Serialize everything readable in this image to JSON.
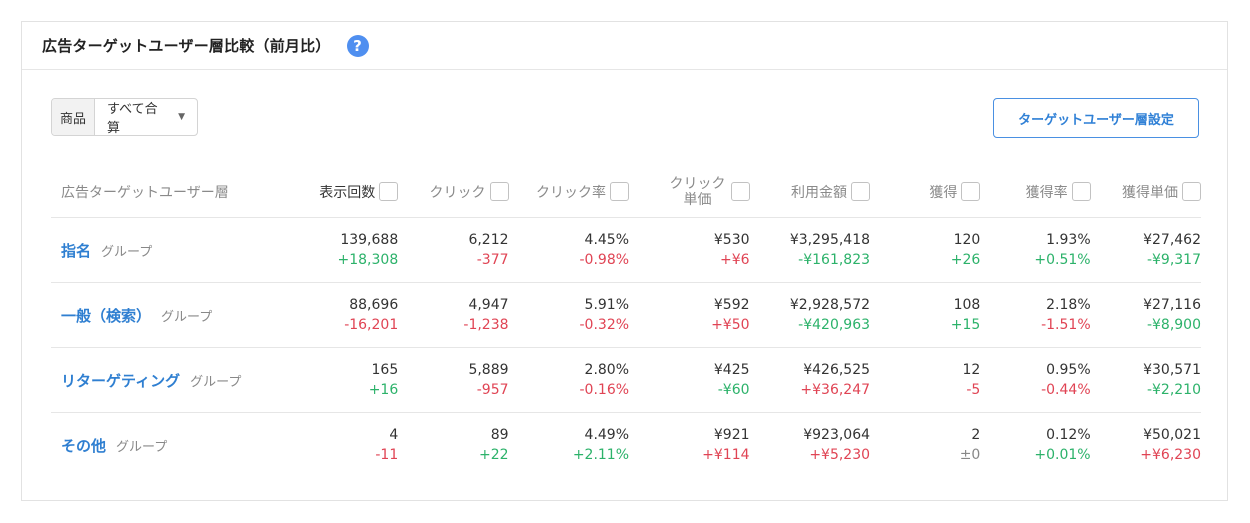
{
  "panel": {
    "title": "広告ターゲットユーザー層比較（前月比）",
    "help_icon": "?"
  },
  "filter": {
    "label": "商品",
    "selected": "すべて合算",
    "caret": "▼"
  },
  "target_button_label": "ターゲットユーザー層設定",
  "columns": [
    "広告ターゲットユーザー層",
    "表示回数",
    "クリック",
    "クリック率",
    "クリック単価",
    "利用金額",
    "獲得",
    "獲得率",
    "獲得単価"
  ],
  "rows": [
    {
      "name": "指名",
      "sub": "グループ",
      "cells": [
        {
          "value": "139,688",
          "diff": "+18,308",
          "trend": "pos"
        },
        {
          "value": "6,212",
          "diff": "-377",
          "trend": "neg"
        },
        {
          "value": "4.45%",
          "diff": "-0.98%",
          "trend": "neg"
        },
        {
          "value": "¥530",
          "diff": "+¥6",
          "trend": "neg"
        },
        {
          "value": "¥3,295,418",
          "diff": "-¥161,823",
          "trend": "pos"
        },
        {
          "value": "120",
          "diff": "+26",
          "trend": "pos"
        },
        {
          "value": "1.93%",
          "diff": "+0.51%",
          "trend": "pos"
        },
        {
          "value": "¥27,462",
          "diff": "-¥9,317",
          "trend": "pos"
        }
      ]
    },
    {
      "name": "一般（検索）",
      "sub": "グループ",
      "cells": [
        {
          "value": "88,696",
          "diff": "-16,201",
          "trend": "neg"
        },
        {
          "value": "4,947",
          "diff": "-1,238",
          "trend": "neg"
        },
        {
          "value": "5.91%",
          "diff": "-0.32%",
          "trend": "neg"
        },
        {
          "value": "¥592",
          "diff": "+¥50",
          "trend": "neg"
        },
        {
          "value": "¥2,928,572",
          "diff": "-¥420,963",
          "trend": "pos"
        },
        {
          "value": "108",
          "diff": "+15",
          "trend": "pos"
        },
        {
          "value": "2.18%",
          "diff": "-1.51%",
          "trend": "neg"
        },
        {
          "value": "¥27,116",
          "diff": "-¥8,900",
          "trend": "pos"
        }
      ]
    },
    {
      "name": "リターゲティング",
      "sub": "グループ",
      "cells": [
        {
          "value": "165",
          "diff": "+16",
          "trend": "pos"
        },
        {
          "value": "5,889",
          "diff": "-957",
          "trend": "neg"
        },
        {
          "value": "2.80%",
          "diff": "-0.16%",
          "trend": "neg"
        },
        {
          "value": "¥425",
          "diff": "-¥60",
          "trend": "pos"
        },
        {
          "value": "¥426,525",
          "diff": "+¥36,247",
          "trend": "neg"
        },
        {
          "value": "12",
          "diff": "-5",
          "trend": "neg"
        },
        {
          "value": "0.95%",
          "diff": "-0.44%",
          "trend": "neg"
        },
        {
          "value": "¥30,571",
          "diff": "-¥2,210",
          "trend": "pos"
        }
      ]
    },
    {
      "name": "その他",
      "sub": "グループ",
      "cells": [
        {
          "value": "4",
          "diff": "-11",
          "trend": "neg"
        },
        {
          "value": "89",
          "diff": "+22",
          "trend": "pos"
        },
        {
          "value": "4.49%",
          "diff": "+2.11%",
          "trend": "pos"
        },
        {
          "value": "¥921",
          "diff": "+¥114",
          "trend": "neg"
        },
        {
          "value": "¥923,064",
          "diff": "+¥5,230",
          "trend": "neg"
        },
        {
          "value": "2",
          "diff": "±0",
          "trend": "neu"
        },
        {
          "value": "0.12%",
          "diff": "+0.01%",
          "trend": "pos"
        },
        {
          "value": "¥50,021",
          "diff": "+¥6,230",
          "trend": "neg"
        }
      ]
    }
  ],
  "colors": {
    "accent": "#2f7fd1",
    "positive": "#2cb26a",
    "negative": "#e04454",
    "neutral": "#888888"
  }
}
